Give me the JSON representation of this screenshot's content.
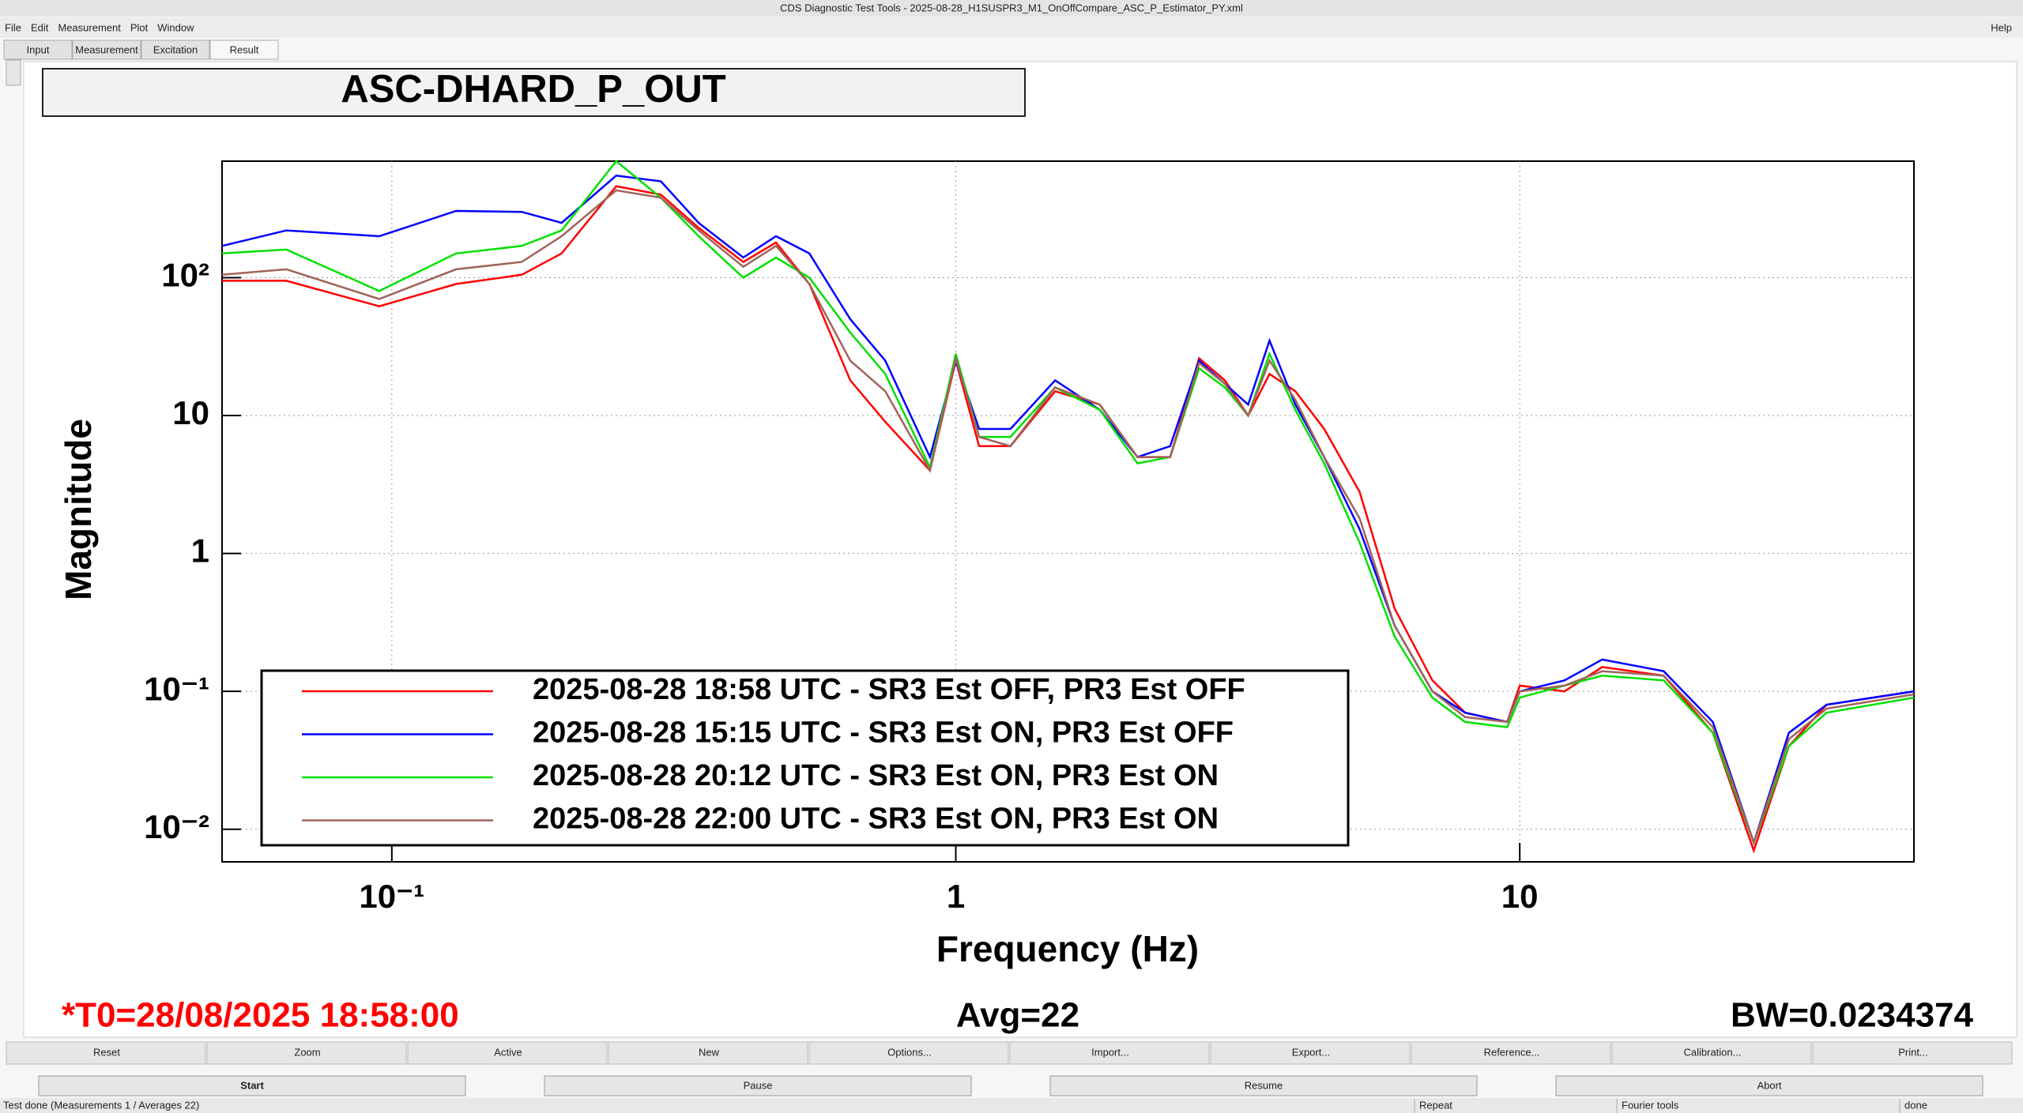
{
  "window_title": "CDS Diagnostic Test Tools - 2025-08-28_H1SUSPR3_M1_OnOffCompare_ASC_P_Estimator_PY.xml",
  "menu": [
    "File",
    "Edit",
    "Measurement",
    "Plot",
    "Window"
  ],
  "help": "Help",
  "tabs": [
    "Input",
    "Measurement",
    "Excitation",
    "Result"
  ],
  "chart_data": {
    "type": "line",
    "title": "ASC-DHARD_P_OUT",
    "x_label": "Frequency (Hz)",
    "y_label": "Magnitude",
    "log_x": true,
    "log_y": true,
    "grid": true,
    "legend": "lower left",
    "xlim": [
      0.05,
      50
    ],
    "ylim": [
      0.0058,
      700
    ],
    "xticks": [
      {
        "value": 0.1,
        "label": "10⁻¹"
      },
      1,
      10
    ],
    "yticks": [
      {
        "value": 0.01,
        "label": "10⁻²"
      },
      {
        "value": 0.1,
        "label": "10⁻¹"
      },
      1,
      10,
      {
        "value": 100,
        "label": "10²"
      }
    ],
    "x": [
      0.05,
      0.065,
      0.095,
      0.13,
      0.17,
      0.2,
      0.25,
      0.3,
      0.35,
      0.42,
      0.48,
      0.55,
      0.65,
      0.75,
      0.9,
      1.0,
      1.1,
      1.25,
      1.5,
      1.8,
      2.1,
      2.4,
      2.7,
      3.0,
      3.3,
      3.6,
      4.0,
      4.5,
      5.2,
      6,
      7,
      8,
      9.5,
      10,
      12,
      14,
      18,
      22,
      26,
      30,
      35,
      50
    ],
    "series": [
      {
        "name": "2025-08-28 18:58 UTC - SR3 Est OFF, PR3 Est OFF",
        "color": "#ff0000",
        "values": [
          95,
          95,
          62,
          90,
          105,
          150,
          460,
          400,
          230,
          130,
          180,
          90,
          18,
          9,
          4,
          25,
          6,
          6,
          15,
          12,
          5,
          5,
          26,
          18,
          10,
          20,
          15,
          8,
          2.8,
          0.4,
          0.12,
          0.07,
          0.06,
          0.11,
          0.1,
          0.15,
          0.13,
          0.05,
          0.007,
          0.04,
          0.08,
          0.1
        ]
      },
      {
        "name": "2025-08-28 15:15 UTC - SR3 Est ON, PR3 Est OFF",
        "color": "#0000ff",
        "values": [
          170,
          220,
          200,
          305,
          300,
          250,
          550,
          500,
          250,
          140,
          200,
          150,
          50,
          25,
          5,
          25,
          8,
          8,
          18,
          11,
          5,
          6,
          25,
          17,
          12,
          35,
          12,
          5,
          1.5,
          0.3,
          0.1,
          0.07,
          0.06,
          0.1,
          0.12,
          0.17,
          0.14,
          0.06,
          0.008,
          0.05,
          0.08,
          0.1
        ]
      },
      {
        "name": "2025-08-28 20:12 UTC - SR3 Est ON, PR3 Est ON",
        "color": "#00e000",
        "values": [
          150,
          160,
          80,
          150,
          170,
          220,
          700,
          380,
          200,
          100,
          140,
          100,
          40,
          20,
          4.2,
          28,
          7,
          7,
          16,
          11,
          4.5,
          5,
          22,
          16,
          10,
          28,
          11,
          4.5,
          1.2,
          0.25,
          0.09,
          0.06,
          0.055,
          0.09,
          0.11,
          0.13,
          0.12,
          0.05,
          0.008,
          0.04,
          0.07,
          0.09
        ]
      },
      {
        "name": "2025-08-28 22:00 UTC - SR3 Est ON, PR3 Est ON",
        "color": "#a0645a",
        "values": [
          105,
          115,
          70,
          115,
          130,
          200,
          430,
          380,
          220,
          120,
          170,
          90,
          25,
          15,
          4,
          26,
          7,
          6,
          16,
          12,
          5,
          5,
          24,
          17,
          10,
          25,
          13,
          5,
          1.8,
          0.3,
          0.1,
          0.065,
          0.06,
          0.1,
          0.11,
          0.14,
          0.13,
          0.055,
          0.008,
          0.045,
          0.075,
          0.095
        ]
      }
    ]
  },
  "footer": {
    "t0": "*T0=28/08/2025 18:58:00",
    "avg": "Avg=22",
    "bw": "BW=0.0234374"
  },
  "buttons": [
    "Reset",
    "Zoom",
    "Active",
    "New",
    "Options...",
    "Import...",
    "Export...",
    "Reference...",
    "Calibration...",
    "Print..."
  ],
  "controls": [
    "Start",
    "Pause",
    "Resume",
    "Abort"
  ],
  "status": [
    "Test done (Measurements 1 / Averages 22)",
    "Repeat",
    "Fourier tools",
    "done"
  ]
}
